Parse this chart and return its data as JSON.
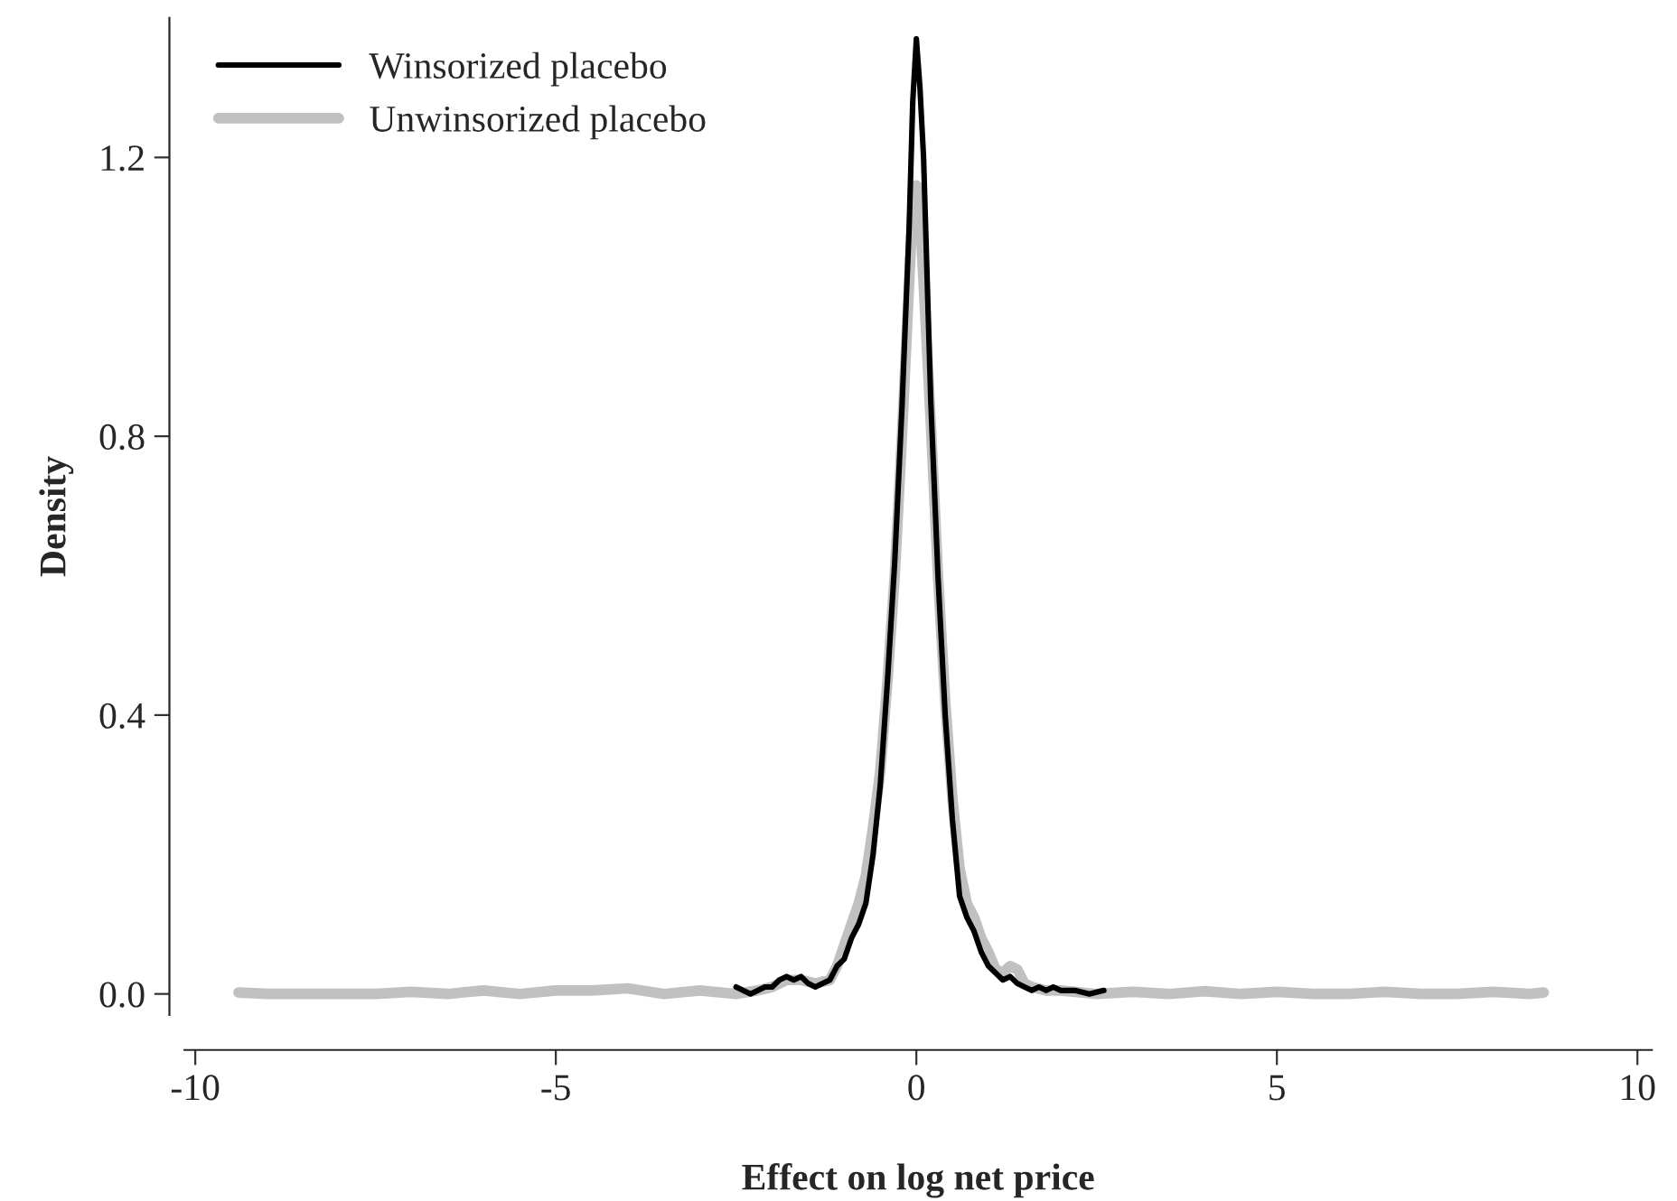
{
  "chart_data": {
    "type": "line",
    "xlabel": "Effect on log net price",
    "ylabel": "Density",
    "xlim": [
      -10.15,
      10.2
    ],
    "ylim": [
      -0.03,
      1.4
    ],
    "xticks": [
      -10,
      -5,
      0,
      5,
      10
    ],
    "yticks": [
      {
        "value": 0,
        "label": "0.0"
      },
      {
        "value": 0.4,
        "label": "0.4"
      },
      {
        "value": 0.8,
        "label": "0.8"
      },
      {
        "value": 1.2,
        "label": "1.2"
      }
    ],
    "grid": false,
    "legend": "top left",
    "marker": "none",
    "line_style": "solid",
    "series": [
      {
        "name": "Winsorized placebo",
        "color": "#000000",
        "x": [
          -2.5,
          -2.3,
          -2.1,
          -2.0,
          -1.9,
          -1.8,
          -1.7,
          -1.6,
          -1.5,
          -1.4,
          -1.3,
          -1.2,
          -1.1,
          -1.0,
          -0.9,
          -0.8,
          -0.7,
          -0.6,
          -0.5,
          -0.4,
          -0.3,
          -0.2,
          -0.1,
          -0.05,
          0.0,
          0.05,
          0.1,
          0.2,
          0.3,
          0.4,
          0.5,
          0.6,
          0.7,
          0.8,
          0.9,
          1.0,
          1.1,
          1.2,
          1.3,
          1.4,
          1.5,
          1.6,
          1.7,
          1.8,
          1.9,
          2.0,
          2.2,
          2.4,
          2.6
        ],
        "values": [
          0.01,
          0.0,
          0.01,
          0.01,
          0.02,
          0.025,
          0.02,
          0.025,
          0.015,
          0.01,
          0.015,
          0.02,
          0.04,
          0.05,
          0.08,
          0.1,
          0.13,
          0.2,
          0.3,
          0.45,
          0.62,
          0.84,
          1.1,
          1.28,
          1.37,
          1.3,
          1.2,
          0.85,
          0.6,
          0.4,
          0.25,
          0.14,
          0.11,
          0.09,
          0.06,
          0.04,
          0.03,
          0.02,
          0.025,
          0.015,
          0.01,
          0.005,
          0.01,
          0.005,
          0.01,
          0.005,
          0.005,
          0.0,
          0.005
        ]
      },
      {
        "name": "Unwinsorized placebo",
        "color": "#c0c0c0",
        "x": [
          -9.4,
          -9.0,
          -8.5,
          -8.0,
          -7.5,
          -7.0,
          -6.5,
          -6.0,
          -5.5,
          -5.0,
          -4.5,
          -4.0,
          -3.5,
          -3.0,
          -2.5,
          -2.2,
          -2.0,
          -1.8,
          -1.6,
          -1.4,
          -1.2,
          -1.1,
          -1.0,
          -0.9,
          -0.8,
          -0.7,
          -0.6,
          -0.5,
          -0.4,
          -0.3,
          -0.2,
          -0.1,
          -0.05,
          0.0,
          0.05,
          0.1,
          0.2,
          0.3,
          0.4,
          0.5,
          0.6,
          0.7,
          0.8,
          0.9,
          1.0,
          1.1,
          1.2,
          1.3,
          1.4,
          1.5,
          1.6,
          1.8,
          2.0,
          2.5,
          3.0,
          3.5,
          4.0,
          4.5,
          5.0,
          5.5,
          6.0,
          6.5,
          7.0,
          7.5,
          8.0,
          8.5,
          8.7
        ],
        "values": [
          0.002,
          0.0,
          0.0,
          0.0,
          0.0,
          0.003,
          0.0,
          0.005,
          0.0,
          0.005,
          0.005,
          0.008,
          0.0,
          0.005,
          0.0,
          0.005,
          0.01,
          0.02,
          0.02,
          0.015,
          0.02,
          0.04,
          0.07,
          0.1,
          0.13,
          0.17,
          0.24,
          0.32,
          0.45,
          0.6,
          0.8,
          1.02,
          1.13,
          1.16,
          1.12,
          1.02,
          0.82,
          0.6,
          0.42,
          0.28,
          0.18,
          0.13,
          0.11,
          0.08,
          0.06,
          0.035,
          0.03,
          0.04,
          0.035,
          0.015,
          0.01,
          0.005,
          0.005,
          0.0,
          0.003,
          0.0,
          0.004,
          0.0,
          0.003,
          0.0,
          0.0,
          0.003,
          0.0,
          0.0,
          0.003,
          0.0,
          0.002
        ]
      }
    ]
  }
}
